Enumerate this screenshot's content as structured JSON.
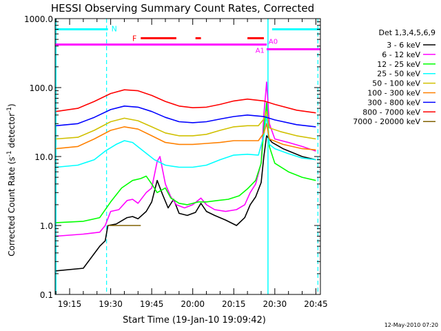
{
  "chart_data": {
    "type": "line",
    "title": "HESSI Observing Summary Count Rates, Corrected",
    "xlabel": "Start Time (19-Jan-10 19:09:42)",
    "ylabel_main": "Corrected Count Rate (s",
    "ylabel_sup1": "-1",
    "ylabel_mid": " detector",
    "ylabel_sup2": "-1",
    "ylabel_end": ")",
    "footer": "12-May-2010 07:20",
    "legend_title": "Det 1,3,4,5,6,9",
    "xlim": [
      "19:09:42",
      "20:46:40"
    ],
    "xticks": [
      "19:15",
      "19:30",
      "19:45",
      "20:00",
      "20:15",
      "20:30",
      "20:45"
    ],
    "ylim": [
      0.1,
      1000
    ],
    "yscale": "log",
    "yticks": [
      "0.1",
      "1.0",
      "10.0",
      "100.0",
      "1000.0"
    ],
    "series": [
      {
        "name": "3 - 6 keV",
        "color": "#000000",
        "points": [
          [
            "19:10",
            0.22
          ],
          [
            "19:20",
            0.24
          ],
          [
            "19:26",
            0.5
          ],
          [
            "19:28",
            0.6
          ],
          [
            "19:29",
            1.0
          ],
          [
            "19:32",
            1.05
          ],
          [
            "19:36",
            1.3
          ],
          [
            "19:38",
            1.35
          ],
          [
            "19:40",
            1.25
          ],
          [
            "19:43",
            1.6
          ],
          [
            "19:45",
            2.2
          ],
          [
            "19:47",
            4.5
          ],
          [
            "19:49",
            2.8
          ],
          [
            "19:51",
            1.8
          ],
          [
            "19:53",
            2.4
          ],
          [
            "19:55",
            1.5
          ],
          [
            "19:58",
            1.4
          ],
          [
            "20:01",
            1.55
          ],
          [
            "20:03",
            2.1
          ],
          [
            "20:05",
            1.6
          ],
          [
            "20:08",
            1.4
          ],
          [
            "20:12",
            1.2
          ],
          [
            "20:16",
            1.0
          ],
          [
            "20:19",
            1.3
          ],
          [
            "20:21",
            2.0
          ],
          [
            "20:23",
            2.6
          ],
          [
            "20:25",
            4.2
          ],
          [
            "20:26",
            10
          ],
          [
            "20:27",
            20
          ],
          [
            "20:29",
            16
          ],
          [
            "20:33",
            13
          ],
          [
            "20:40",
            10
          ],
          [
            "20:45",
            9
          ]
        ]
      },
      {
        "name": "6 - 12 keV",
        "color": "#ff00ff",
        "points": [
          [
            "19:10",
            0.7
          ],
          [
            "19:20",
            0.75
          ],
          [
            "19:26",
            0.8
          ],
          [
            "19:28",
            1.0
          ],
          [
            "19:30",
            1.6
          ],
          [
            "19:33",
            1.7
          ],
          [
            "19:36",
            2.3
          ],
          [
            "19:38",
            2.4
          ],
          [
            "19:40",
            2.1
          ],
          [
            "19:43",
            3.0
          ],
          [
            "19:45",
            3.5
          ],
          [
            "19:47",
            8.5
          ],
          [
            "19:48",
            10
          ],
          [
            "19:50",
            4.0
          ],
          [
            "19:52",
            2.6
          ],
          [
            "19:54",
            2.0
          ],
          [
            "19:57",
            1.8
          ],
          [
            "20:00",
            2.0
          ],
          [
            "20:03",
            2.5
          ],
          [
            "20:05",
            2.0
          ],
          [
            "20:08",
            1.7
          ],
          [
            "20:12",
            1.6
          ],
          [
            "20:16",
            1.7
          ],
          [
            "20:19",
            2.0
          ],
          [
            "20:21",
            3.0
          ],
          [
            "20:23",
            4.0
          ],
          [
            "20:25",
            8
          ],
          [
            "20:26",
            40
          ],
          [
            "20:27",
            120
          ],
          [
            "20:28",
            30
          ],
          [
            "20:30",
            18
          ],
          [
            "20:35",
            16
          ],
          [
            "20:40",
            14
          ],
          [
            "20:45",
            12
          ]
        ]
      },
      {
        "name": "12 - 25 keV",
        "color": "#00ff00",
        "points": [
          [
            "19:10",
            1.1
          ],
          [
            "19:20",
            1.15
          ],
          [
            "19:26",
            1.3
          ],
          [
            "19:30",
            2.2
          ],
          [
            "19:34",
            3.5
          ],
          [
            "19:38",
            4.5
          ],
          [
            "19:41",
            4.8
          ],
          [
            "19:43",
            5.2
          ],
          [
            "19:45",
            4.0
          ],
          [
            "19:47",
            3.0
          ],
          [
            "19:50",
            3.5
          ],
          [
            "19:52",
            2.5
          ],
          [
            "19:55",
            2.1
          ],
          [
            "19:58",
            2.0
          ],
          [
            "20:02",
            2.2
          ],
          [
            "20:05",
            2.2
          ],
          [
            "20:09",
            2.3
          ],
          [
            "20:13",
            2.4
          ],
          [
            "20:17",
            2.7
          ],
          [
            "20:20",
            3.4
          ],
          [
            "20:23",
            4.5
          ],
          [
            "20:25",
            8
          ],
          [
            "20:26",
            25
          ],
          [
            "20:27",
            60
          ],
          [
            "20:28",
            14
          ],
          [
            "20:30",
            8
          ],
          [
            "20:35",
            6
          ],
          [
            "20:40",
            5
          ],
          [
            "20:45",
            4.5
          ]
        ]
      },
      {
        "name": "25 - 50 keV",
        "color": "#00ffff",
        "points": [
          [
            "19:10",
            7.0
          ],
          [
            "19:18",
            7.5
          ],
          [
            "19:24",
            9
          ],
          [
            "19:28",
            12
          ],
          [
            "19:32",
            15
          ],
          [
            "19:35",
            17
          ],
          [
            "19:38",
            16
          ],
          [
            "19:42",
            12
          ],
          [
            "19:46",
            9
          ],
          [
            "19:50",
            7.5
          ],
          [
            "19:55",
            7
          ],
          [
            "20:00",
            7
          ],
          [
            "20:05",
            7.5
          ],
          [
            "20:10",
            9
          ],
          [
            "20:15",
            10.5
          ],
          [
            "20:20",
            10.8
          ],
          [
            "20:24",
            10.5
          ],
          [
            "20:26",
            20
          ],
          [
            "20:27",
            40
          ],
          [
            "20:28",
            15
          ],
          [
            "20:30",
            13
          ],
          [
            "20:35",
            11
          ],
          [
            "20:40",
            9.5
          ],
          [
            "20:45",
            9
          ]
        ]
      },
      {
        "name": "50 - 100 keV",
        "color": "#d0c000",
        "points": [
          [
            "19:10",
            18
          ],
          [
            "19:18",
            19
          ],
          [
            "19:24",
            24
          ],
          [
            "19:30",
            32
          ],
          [
            "19:35",
            36
          ],
          [
            "19:40",
            33
          ],
          [
            "19:45",
            27
          ],
          [
            "19:50",
            22
          ],
          [
            "19:55",
            20
          ],
          [
            "20:00",
            20
          ],
          [
            "20:05",
            21
          ],
          [
            "20:10",
            24
          ],
          [
            "20:15",
            27
          ],
          [
            "20:20",
            28
          ],
          [
            "20:24",
            28
          ],
          [
            "20:26",
            35
          ],
          [
            "20:27",
            45
          ],
          [
            "20:28",
            26
          ],
          [
            "20:32",
            23
          ],
          [
            "20:38",
            20
          ],
          [
            "20:45",
            18
          ]
        ]
      },
      {
        "name": "100 - 300 keV",
        "color": "#ff8000",
        "points": [
          [
            "19:10",
            13
          ],
          [
            "19:18",
            14
          ],
          [
            "19:24",
            18
          ],
          [
            "19:30",
            24
          ],
          [
            "19:35",
            27
          ],
          [
            "19:40",
            25
          ],
          [
            "19:45",
            20
          ],
          [
            "19:50",
            16
          ],
          [
            "19:55",
            15
          ],
          [
            "20:00",
            15
          ],
          [
            "20:05",
            15.5
          ],
          [
            "20:10",
            16
          ],
          [
            "20:15",
            17
          ],
          [
            "20:20",
            17
          ],
          [
            "20:24",
            17
          ],
          [
            "20:26",
            22
          ],
          [
            "20:27",
            30
          ],
          [
            "20:28",
            18
          ],
          [
            "20:33",
            15
          ],
          [
            "20:40",
            13
          ],
          [
            "20:45",
            12.5
          ]
        ]
      },
      {
        "name": "300 - 800 keV",
        "color": "#0000ff",
        "points": [
          [
            "19:10",
            28
          ],
          [
            "19:18",
            30
          ],
          [
            "19:24",
            37
          ],
          [
            "19:30",
            48
          ],
          [
            "19:35",
            54
          ],
          [
            "19:40",
            52
          ],
          [
            "19:45",
            45
          ],
          [
            "19:50",
            37
          ],
          [
            "19:55",
            32
          ],
          [
            "20:00",
            31
          ],
          [
            "20:05",
            32
          ],
          [
            "20:10",
            35
          ],
          [
            "20:15",
            38
          ],
          [
            "20:20",
            40
          ],
          [
            "20:26",
            38
          ],
          [
            "20:30",
            34
          ],
          [
            "20:38",
            29
          ],
          [
            "20:45",
            27
          ]
        ]
      },
      {
        "name": "800 - 7000 keV",
        "color": "#ff0000",
        "points": [
          [
            "19:10",
            45
          ],
          [
            "19:18",
            50
          ],
          [
            "19:24",
            63
          ],
          [
            "19:30",
            82
          ],
          [
            "19:35",
            93
          ],
          [
            "19:40",
            90
          ],
          [
            "19:45",
            77
          ],
          [
            "19:50",
            63
          ],
          [
            "19:55",
            54
          ],
          [
            "20:00",
            51
          ],
          [
            "20:05",
            52
          ],
          [
            "20:10",
            57
          ],
          [
            "20:15",
            64
          ],
          [
            "20:20",
            68
          ],
          [
            "20:26",
            64
          ],
          [
            "20:30",
            57
          ],
          [
            "20:38",
            47
          ],
          [
            "20:45",
            43
          ]
        ]
      },
      {
        "name": "7000 - 20000 keV",
        "color": "#806000",
        "points": [
          [
            "19:29",
            1.0
          ],
          [
            "19:41",
            1.0
          ]
        ]
      }
    ],
    "annotations": {
      "night_bar": {
        "label": "N",
        "color": "#00ffff",
        "ranges": [
          [
            "19:09:42",
            "19:29:00"
          ],
          [
            "20:29:00",
            "20:46:40"
          ]
        ],
        "y": 700
      },
      "flare_bar": {
        "label": "F",
        "color": "#ff0000",
        "ranges": [
          [
            "19:41:00",
            "19:54:00"
          ],
          [
            "20:01:00",
            "20:03:00"
          ],
          [
            "20:20:00",
            "20:26:00"
          ]
        ],
        "y": 520
      },
      "attenuator_bar": {
        "label_a0": "A0",
        "label_a1": "A1",
        "color": "#ff00ff",
        "ranges_a0": [
          [
            "19:09:42",
            "20:27:00"
          ]
        ],
        "ranges_a1": [
          [
            "20:27:00",
            "20:46:40"
          ]
        ],
        "y_a0": 420,
        "y_a1": 360
      },
      "vlines": {
        "solid_color": "#00ffff",
        "solid": [
          "19:10:00",
          "20:27:30"
        ],
        "dashed": [
          "19:28:30",
          "20:45:45"
        ]
      }
    }
  }
}
